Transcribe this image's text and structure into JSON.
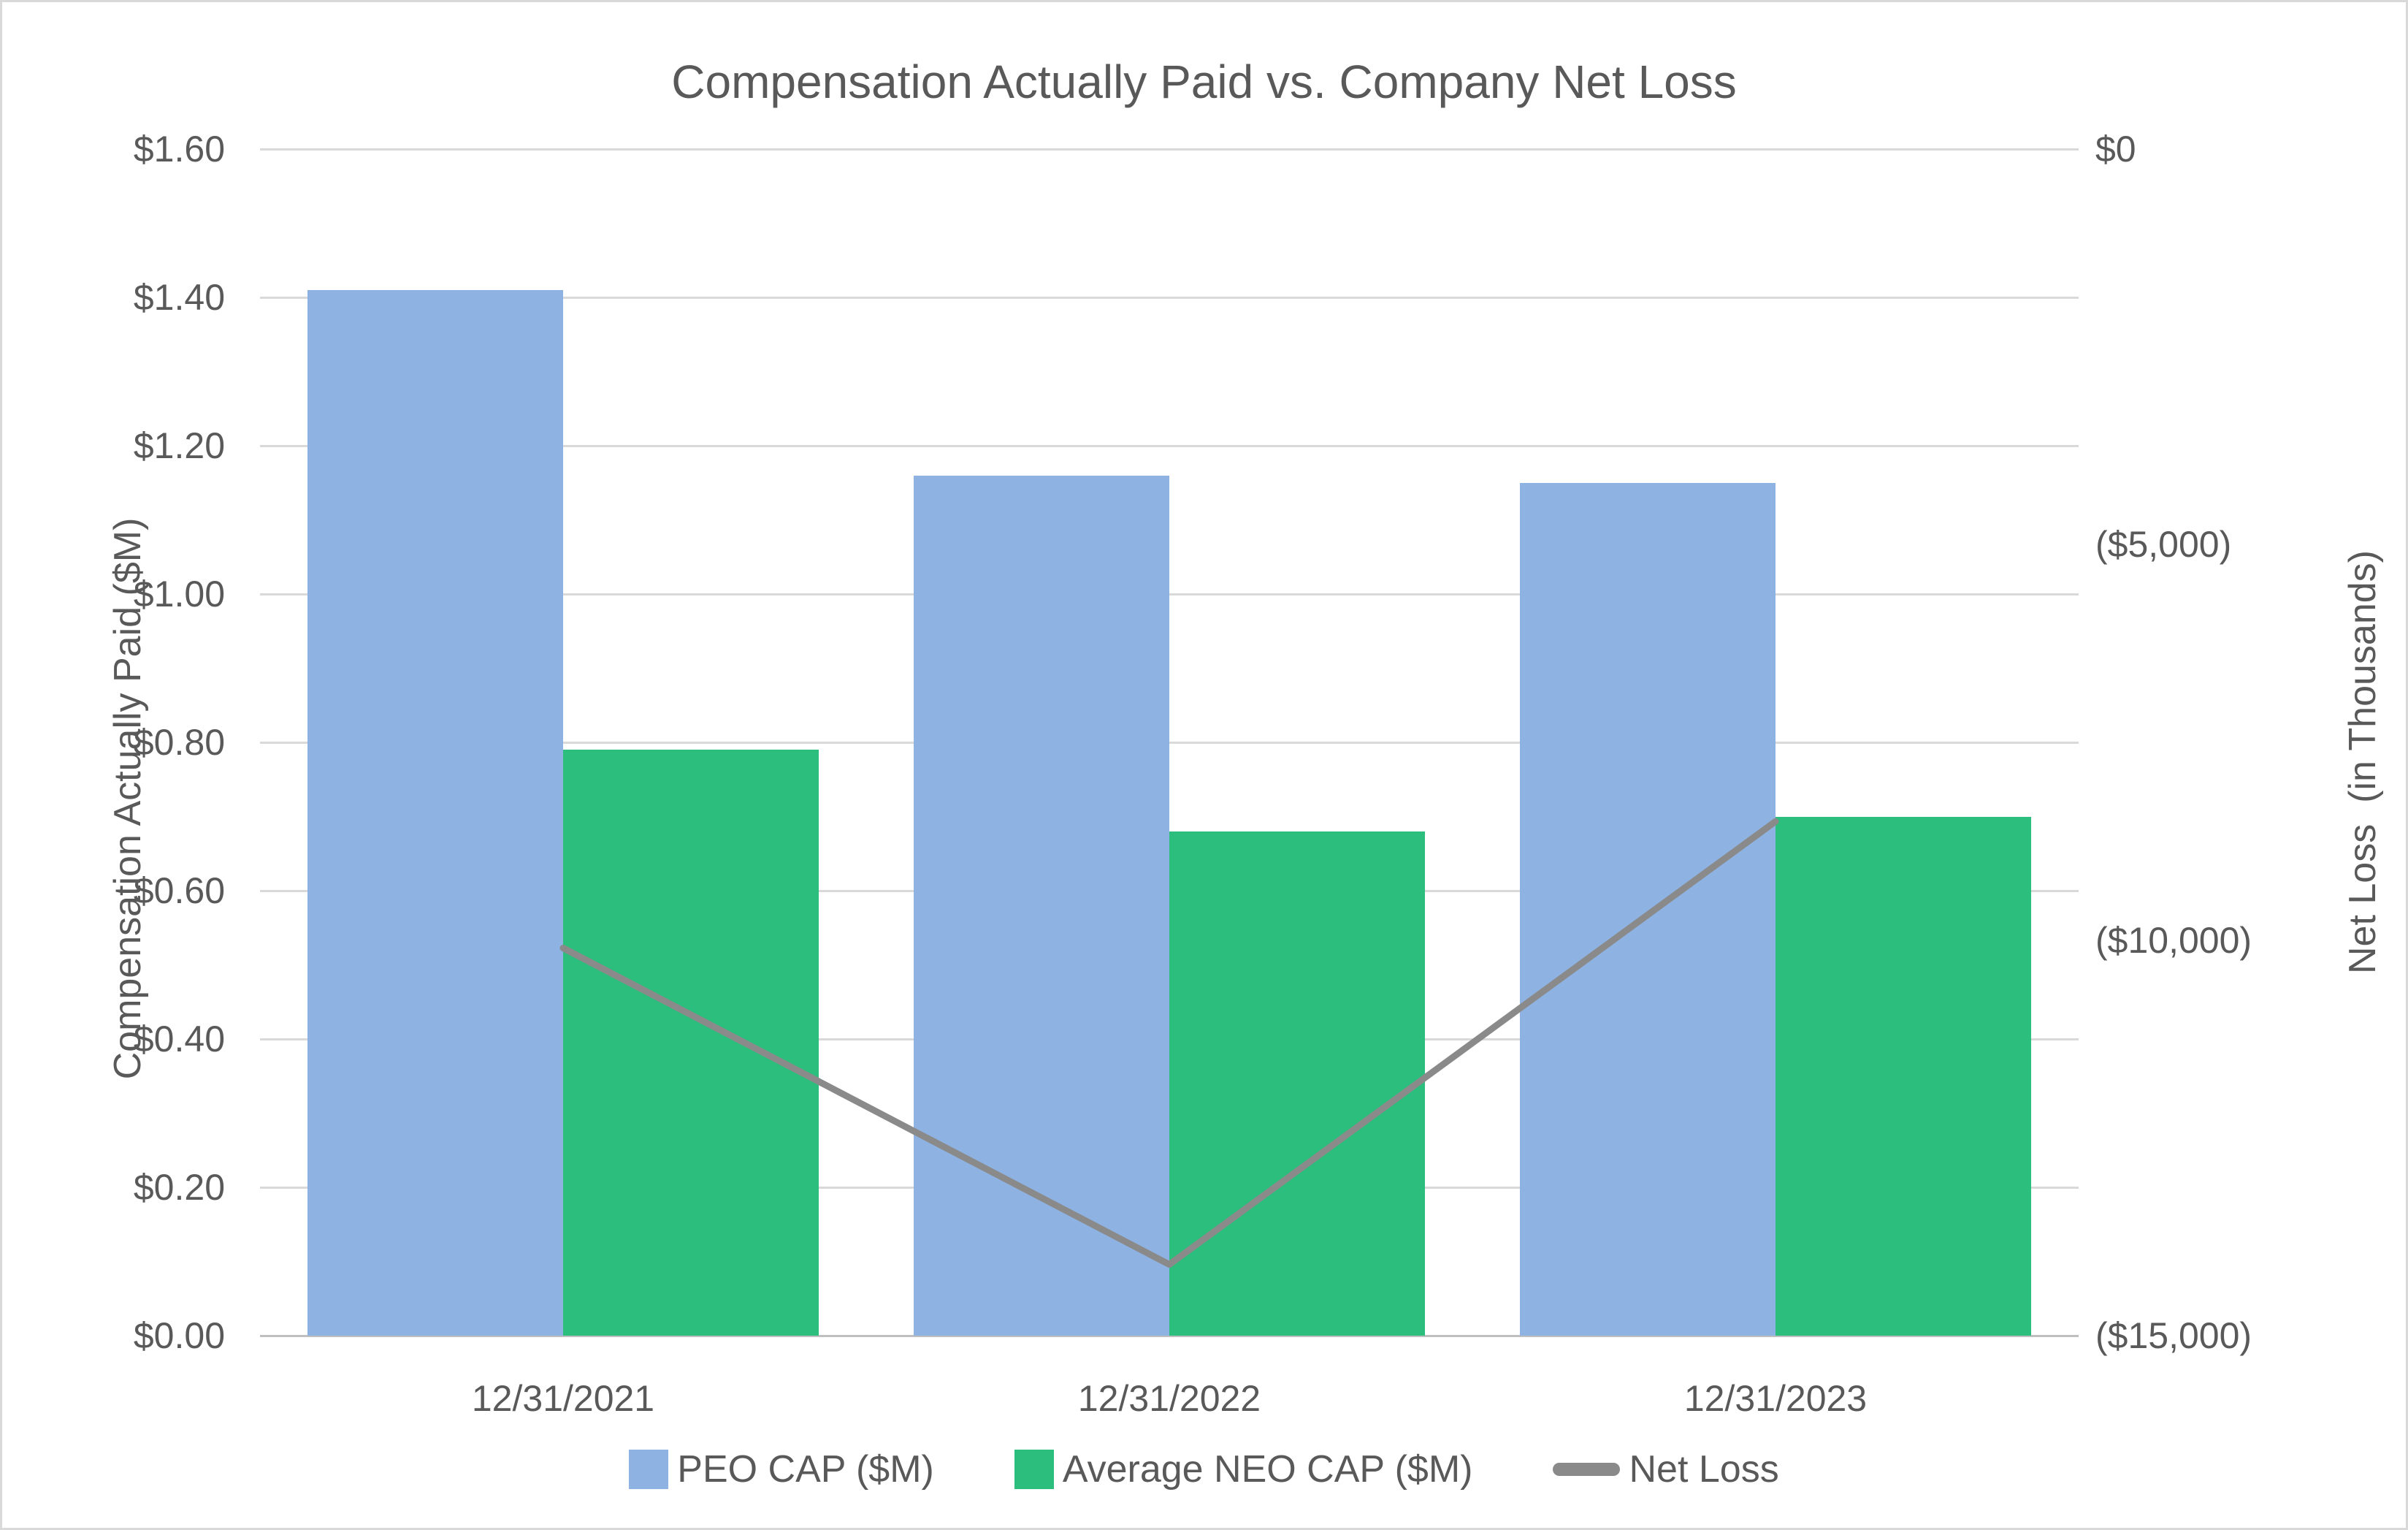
{
  "chart_data": {
    "type": "bar",
    "title": "Compensation Actually Paid vs. Company Net Loss",
    "categories": [
      "12/31/2021",
      "12/31/2022",
      "12/31/2023"
    ],
    "series": [
      {
        "name": "PEO CAP ($M)",
        "type": "bar",
        "axis": "left",
        "color": "#8EB3E2",
        "values": [
          1.41,
          1.16,
          1.15
        ]
      },
      {
        "name": "Average NEO CAP ($M)",
        "type": "bar",
        "axis": "left",
        "color": "#2CBE7C",
        "values": [
          0.79,
          0.68,
          0.7
        ]
      },
      {
        "name": "Net Loss",
        "type": "line",
        "axis": "right",
        "color": "#8A8A8A",
        "values": [
          -10100,
          -14100,
          -8500
        ]
      }
    ],
    "left_axis": {
      "label": "Compensation Actually Paid ($M)",
      "ticks": [
        "$1.60",
        "$1.40",
        "$1.20",
        "$1.00",
        "$0.80",
        "$0.60",
        "$0.40",
        "$0.20",
        "$0.00"
      ],
      "range": [
        0,
        1.6
      ]
    },
    "right_axis": {
      "label": "Net Loss  (in Thousands)",
      "ticks": [
        "$0",
        "($5,000)",
        "($10,000)",
        "($15,000)"
      ],
      "range": [
        -15000,
        0
      ]
    },
    "legend_position": "bottom",
    "grid": true,
    "colors": {
      "peo_bar": "#8EB3E2",
      "neo_bar": "#2CBE7C",
      "net_loss_line": "#8A8A8A",
      "text": "#595959",
      "gridline": "#D9D9D9",
      "axis_line": "#BFBFBF",
      "border": "#D9D9D9"
    }
  }
}
